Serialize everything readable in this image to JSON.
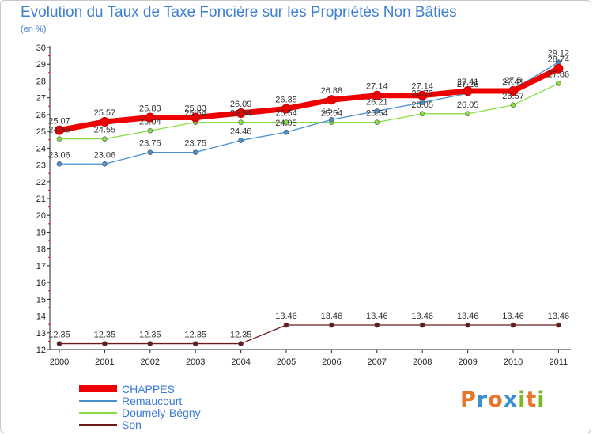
{
  "title": "Evolution du Taux de Taxe Foncière sur les Propriétés Non Bâties",
  "unit_label": "(en %)",
  "logo": {
    "text": "Proxiti",
    "colors": [
      "#e8742a",
      "#3a8fd0",
      "#e8742a",
      "#3a8fd0",
      "#79b928",
      "#e8742a",
      "#79b928"
    ]
  },
  "chart_data": {
    "type": "line",
    "title": "Evolution du Taux de Taxe Foncière sur les Propriétés Non Bâties",
    "ylabel": "(en %)",
    "xlabel": "",
    "categories": [
      "2000",
      "2001",
      "2002",
      "2003",
      "2004",
      "2005",
      "2006",
      "2007",
      "2008",
      "2009",
      "2010",
      "2011"
    ],
    "ylim": [
      12,
      30
    ],
    "yticks": [
      12,
      13,
      14,
      15,
      16,
      17,
      18,
      19,
      20,
      21,
      22,
      23,
      24,
      25,
      26,
      27,
      28,
      29,
      30
    ],
    "grid": false,
    "legend_position": "bottom-left",
    "series": [
      {
        "name": "CHAPPES",
        "color": "#ee0000",
        "values": [
          25.07,
          25.57,
          25.83,
          25.83,
          26.09,
          26.35,
          26.88,
          27.14,
          27.14,
          27.41,
          27.41,
          28.74
        ],
        "labels": [
          "25.07",
          "25.57",
          "25.83",
          "25.83",
          "26.09",
          "26.35",
          "26.88",
          "27.14",
          "27.14",
          "27.41",
          "27.41",
          "28.74"
        ]
      },
      {
        "name": "Remaucourt",
        "color": "#4a8fd0",
        "values": [
          23.06,
          23.06,
          23.75,
          23.75,
          24.46,
          24.95,
          25.7,
          26.21,
          26.72,
          27.26,
          27.5,
          29.12
        ],
        "labels": [
          "23.06",
          "23.06",
          "23.75",
          "23.75",
          "24.46",
          "24.95",
          "25.7",
          "26.21",
          "26.72",
          "27.26",
          "27.5",
          "29.12"
        ]
      },
      {
        "name": "Doumely-Bégny",
        "color": "#88dd44",
        "values": [
          24.55,
          24.55,
          25.04,
          25.54,
          25.54,
          25.54,
          25.54,
          25.54,
          26.05,
          26.05,
          26.57,
          27.86
        ],
        "labels": [
          "24.55",
          "24.55",
          "25.04",
          "25.54",
          "25.54",
          "25.54",
          "25.54",
          "25.54",
          "26.05",
          "26.05",
          "26.57",
          "27.86"
        ]
      },
      {
        "name": "Son",
        "color": "#6b1a1a",
        "values": [
          12.35,
          12.35,
          12.35,
          12.35,
          12.35,
          13.46,
          13.46,
          13.46,
          13.46,
          13.46,
          13.46,
          13.46
        ],
        "labels": [
          "12.35",
          "12.35",
          "12.35",
          "12.35",
          "12.35",
          "13.46",
          "13.46",
          "13.46",
          "13.46",
          "13.46",
          "13.46",
          "13.46"
        ]
      }
    ]
  }
}
